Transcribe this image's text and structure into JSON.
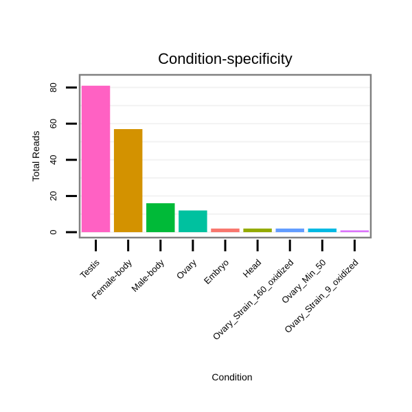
{
  "chart_data": {
    "type": "bar",
    "title": "Condition-specificity",
    "xlabel": "Condition",
    "ylabel": "Total Reads",
    "ylim": [
      -3,
      87
    ],
    "yticks": [
      0,
      20,
      40,
      60,
      80
    ],
    "grid": true,
    "categories": [
      "Testis",
      "Female-body",
      "Male-body",
      "Ovary",
      "Embryo",
      "Head",
      "Ovary_Strain_160_oxidized",
      "Ovary_Min_50",
      "Ovary_Strain_9_oxidized"
    ],
    "values": [
      81,
      57,
      16,
      12,
      2,
      2,
      2,
      2,
      1
    ],
    "colors": [
      "#FF61C3",
      "#D39200",
      "#00BA38",
      "#00C19F",
      "#F8766D",
      "#93AA00",
      "#619CFF",
      "#00B9E3",
      "#DB72FB"
    ]
  }
}
